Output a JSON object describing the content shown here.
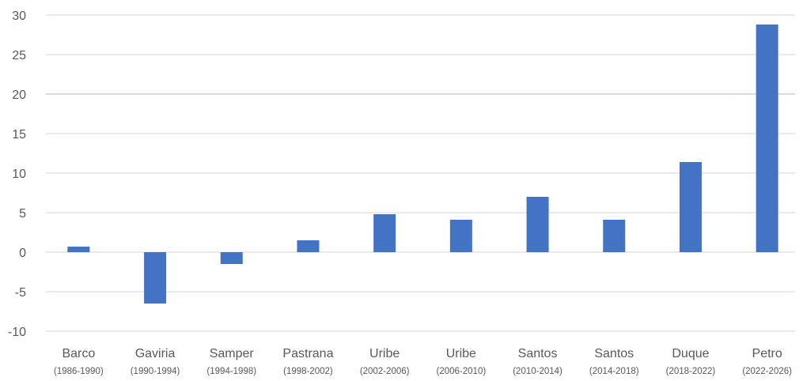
{
  "chart_data": {
    "type": "bar",
    "title": "",
    "xlabel": "",
    "ylabel": "",
    "ylim": [
      -10,
      30
    ],
    "yticks": [
      30,
      25,
      20,
      15,
      10,
      5,
      0,
      -5,
      -10
    ],
    "grid": true,
    "legend": "none",
    "categories": [
      {
        "name": "Barco",
        "period": "(1986-1990)"
      },
      {
        "name": "Gaviria",
        "period": "(1990-1994)"
      },
      {
        "name": "Samper",
        "period": "(1994-1998)"
      },
      {
        "name": "Pastrana",
        "period": "(1998-2002)"
      },
      {
        "name": "Uribe",
        "period": "(2002-2006)"
      },
      {
        "name": "Uribe",
        "period": "(2006-2010)"
      },
      {
        "name": "Santos",
        "period": "(2010-2014)"
      },
      {
        "name": "Santos",
        "period": "(2014-2018)"
      },
      {
        "name": "Duque",
        "period": "(2018-2022)"
      },
      {
        "name": "Petro",
        "period": "(2022-2026)"
      }
    ],
    "values": [
      0.7,
      -6.5,
      -1.5,
      1.5,
      4.8,
      4.1,
      7.0,
      4.1,
      11.4,
      28.8
    ],
    "colors": {
      "bar": "#4472c4",
      "grid": "#d0d4e0",
      "grid_highlight": "#c9a8d6",
      "text": "#595959"
    }
  }
}
